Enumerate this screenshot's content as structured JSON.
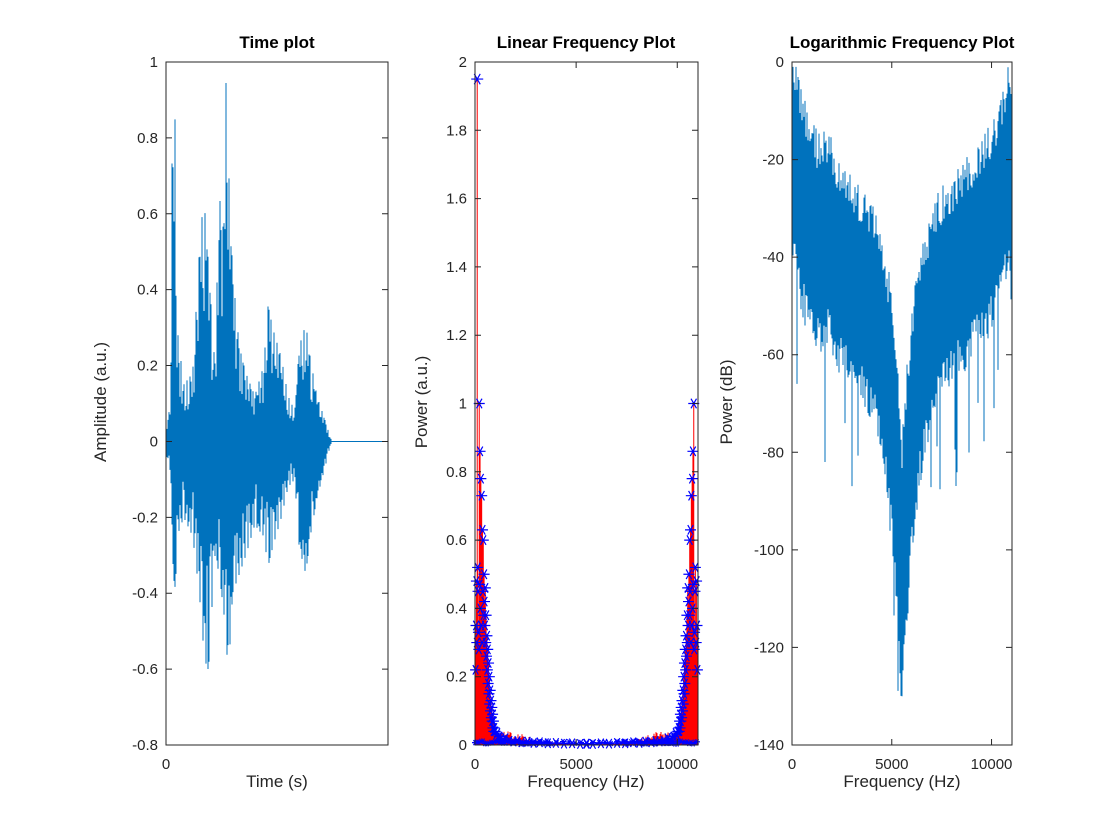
{
  "figure": {
    "background": "#ffffff"
  },
  "colors": {
    "matlab_blue": "#0072BD",
    "stem_red": "#FF0000",
    "marker_blue": "#0000FF",
    "axis": "#262626",
    "title": "#000000"
  },
  "chart_data": [
    {
      "type": "line",
      "title": "Time plot",
      "xlabel": "Time (s)",
      "ylabel": "Amplitude (a.u.)",
      "xticks": [
        0
      ],
      "xtick_labels": [
        "0"
      ],
      "yticks": [
        1,
        0.8,
        0.6,
        0.4,
        0.2,
        0,
        -0.2,
        -0.4,
        -0.6,
        -0.8
      ],
      "ylim": [
        -0.8,
        1
      ],
      "line_color": "#0072BD",
      "description": "speech waveform; envelope keypoints as [x_fraction, pos_amp, neg_amp]; flat zero line after x_fraction 0.74",
      "envelope": [
        [
          0.0,
          0.03,
          0.03
        ],
        [
          0.02,
          0.1,
          0.08
        ],
        [
          0.03,
          1.0,
          0.3
        ],
        [
          0.04,
          0.88,
          0.45
        ],
        [
          0.05,
          0.3,
          0.25
        ],
        [
          0.08,
          0.15,
          0.2
        ],
        [
          0.12,
          0.18,
          0.25
        ],
        [
          0.15,
          0.5,
          0.4
        ],
        [
          0.17,
          0.65,
          0.55
        ],
        [
          0.19,
          0.48,
          0.62
        ],
        [
          0.22,
          0.2,
          0.3
        ],
        [
          0.24,
          0.65,
          0.35
        ],
        [
          0.26,
          0.55,
          0.45
        ],
        [
          0.27,
          0.95,
          0.5
        ],
        [
          0.28,
          0.75,
          0.63
        ],
        [
          0.3,
          0.45,
          0.4
        ],
        [
          0.33,
          0.25,
          0.35
        ],
        [
          0.36,
          0.18,
          0.3
        ],
        [
          0.4,
          0.12,
          0.22
        ],
        [
          0.44,
          0.2,
          0.25
        ],
        [
          0.46,
          0.36,
          0.33
        ],
        [
          0.48,
          0.3,
          0.28
        ],
        [
          0.52,
          0.22,
          0.2
        ],
        [
          0.55,
          0.12,
          0.12
        ],
        [
          0.58,
          0.08,
          0.1
        ],
        [
          0.6,
          0.25,
          0.28
        ],
        [
          0.63,
          0.31,
          0.35
        ],
        [
          0.65,
          0.22,
          0.25
        ],
        [
          0.68,
          0.12,
          0.15
        ],
        [
          0.72,
          0.05,
          0.06
        ],
        [
          0.74,
          0.01,
          0.01
        ],
        [
          0.75,
          0.0,
          0.0
        ],
        [
          1.0,
          0.0,
          0.0
        ]
      ]
    },
    {
      "type": "stem",
      "title": "Linear Frequency Plot",
      "xlabel": "Frequency (Hz)",
      "ylabel": "Power (a.u.)",
      "xlim": [
        0,
        11025
      ],
      "ylim": [
        0,
        2
      ],
      "xticks": [
        0,
        5000,
        10000
      ],
      "xtick_labels": [
        "0",
        "5000",
        "10000"
      ],
      "yticks": [
        2,
        1.8,
        1.6,
        1.4,
        1.2,
        1,
        0.8,
        0.6,
        0.4,
        0.2,
        0
      ],
      "stem_color": "#FF0000",
      "marker_color": "#0000FF",
      "peak": [
        110,
        1.95
      ],
      "mirrored_about": 11025,
      "stems": [
        [
          30,
          0.22
        ],
        [
          50,
          0.35
        ],
        [
          70,
          0.48
        ],
        [
          90,
          0.3
        ],
        [
          130,
          0.52
        ],
        [
          150,
          0.45
        ],
        [
          170,
          0.33
        ],
        [
          190,
          0.28
        ],
        [
          210,
          1.0
        ],
        [
          230,
          0.47
        ],
        [
          250,
          0.86
        ],
        [
          270,
          0.4
        ],
        [
          290,
          0.78
        ],
        [
          310,
          0.35
        ],
        [
          330,
          0.73
        ],
        [
          350,
          0.3
        ],
        [
          370,
          0.63
        ],
        [
          390,
          0.45
        ],
        [
          410,
          0.6
        ],
        [
          430,
          0.38
        ],
        [
          450,
          0.5
        ],
        [
          470,
          0.42
        ],
        [
          490,
          0.35
        ],
        [
          510,
          0.46
        ],
        [
          530,
          0.3
        ],
        [
          550,
          0.38
        ],
        [
          570,
          0.26
        ],
        [
          590,
          0.32
        ],
        [
          610,
          0.22
        ],
        [
          630,
          0.28
        ],
        [
          650,
          0.18
        ],
        [
          670,
          0.24
        ],
        [
          690,
          0.15
        ],
        [
          710,
          0.2
        ],
        [
          730,
          0.12
        ],
        [
          750,
          0.16
        ],
        [
          770,
          0.1
        ],
        [
          790,
          0.13
        ],
        [
          810,
          0.08
        ],
        [
          830,
          0.11
        ],
        [
          850,
          0.07
        ],
        [
          870,
          0.09
        ],
        [
          890,
          0.05
        ],
        [
          910,
          0.07
        ],
        [
          930,
          0.04
        ],
        [
          950,
          0.05
        ],
        [
          1000,
          0.04
        ],
        [
          1050,
          0.03
        ],
        [
          1100,
          0.035
        ],
        [
          1200,
          0.025
        ],
        [
          1300,
          0.02
        ],
        [
          1400,
          0.015
        ],
        [
          1500,
          0.02
        ],
        [
          1700,
          0.012
        ],
        [
          1900,
          0.01
        ],
        [
          2100,
          0.012
        ],
        [
          2300,
          0.008
        ],
        [
          2600,
          0.01
        ],
        [
          2900,
          0.006
        ],
        [
          3200,
          0.008
        ],
        [
          3600,
          0.005
        ],
        [
          4000,
          0.006
        ],
        [
          4400,
          0.004
        ],
        [
          4800,
          0.005
        ],
        [
          5200,
          0.003
        ],
        [
          5500,
          0.004
        ]
      ],
      "floor_band": [
        [
          0,
          0.018
        ],
        [
          400,
          0.022
        ],
        [
          900,
          0.028
        ],
        [
          1400,
          0.034
        ],
        [
          2000,
          0.033
        ],
        [
          2600,
          0.022
        ],
        [
          3200,
          0.012
        ],
        [
          4000,
          0.007
        ],
        [
          4800,
          0.004
        ],
        [
          5512,
          0.003
        ]
      ]
    },
    {
      "type": "line",
      "title": "Logarithmic Frequency Plot",
      "xlabel": "Frequency (Hz)",
      "ylabel": "Power (dB)",
      "xlim": [
        0,
        11025
      ],
      "ylim": [
        -140,
        0
      ],
      "xticks": [
        0,
        5000,
        10000
      ],
      "xtick_labels": [
        "0",
        "5000",
        "10000"
      ],
      "yticks": [
        0,
        -20,
        -40,
        -60,
        -80,
        -100,
        -120,
        -140
      ],
      "line_color": "#0072BD",
      "description": "noisy dB spectrum band; keypoints as [freq_hz, upper_dB, lower_dB]; deep notch at ~5512 Hz down to ~-126 dB",
      "band": [
        [
          0,
          -8,
          -55
        ],
        [
          80,
          -3,
          -30
        ],
        [
          200,
          -6,
          -35
        ],
        [
          400,
          -10,
          -42
        ],
        [
          700,
          -14,
          -47
        ],
        [
          1000,
          -18,
          -50
        ],
        [
          1400,
          -21,
          -52
        ],
        [
          1800,
          -19,
          -50
        ],
        [
          2200,
          -24,
          -55
        ],
        [
          2700,
          -27,
          -58
        ],
        [
          3200,
          -30,
          -60
        ],
        [
          3700,
          -32,
          -63
        ],
        [
          4200,
          -36,
          -68
        ],
        [
          4600,
          -42,
          -76
        ],
        [
          5000,
          -52,
          -92
        ],
        [
          5300,
          -68,
          -110
        ],
        [
          5512,
          -82,
          -126
        ],
        [
          5750,
          -68,
          -110
        ],
        [
          6000,
          -56,
          -95
        ],
        [
          6400,
          -45,
          -80
        ],
        [
          6900,
          -37,
          -68
        ],
        [
          7400,
          -32,
          -62
        ],
        [
          8000,
          -29,
          -58
        ],
        [
          8600,
          -26,
          -56
        ],
        [
          9200,
          -23,
          -52
        ],
        [
          9700,
          -20,
          -50
        ],
        [
          10200,
          -16,
          -46
        ],
        [
          10600,
          -10,
          -40
        ],
        [
          10900,
          -4,
          -32
        ],
        [
          11025,
          -6,
          -55
        ]
      ]
    }
  ]
}
